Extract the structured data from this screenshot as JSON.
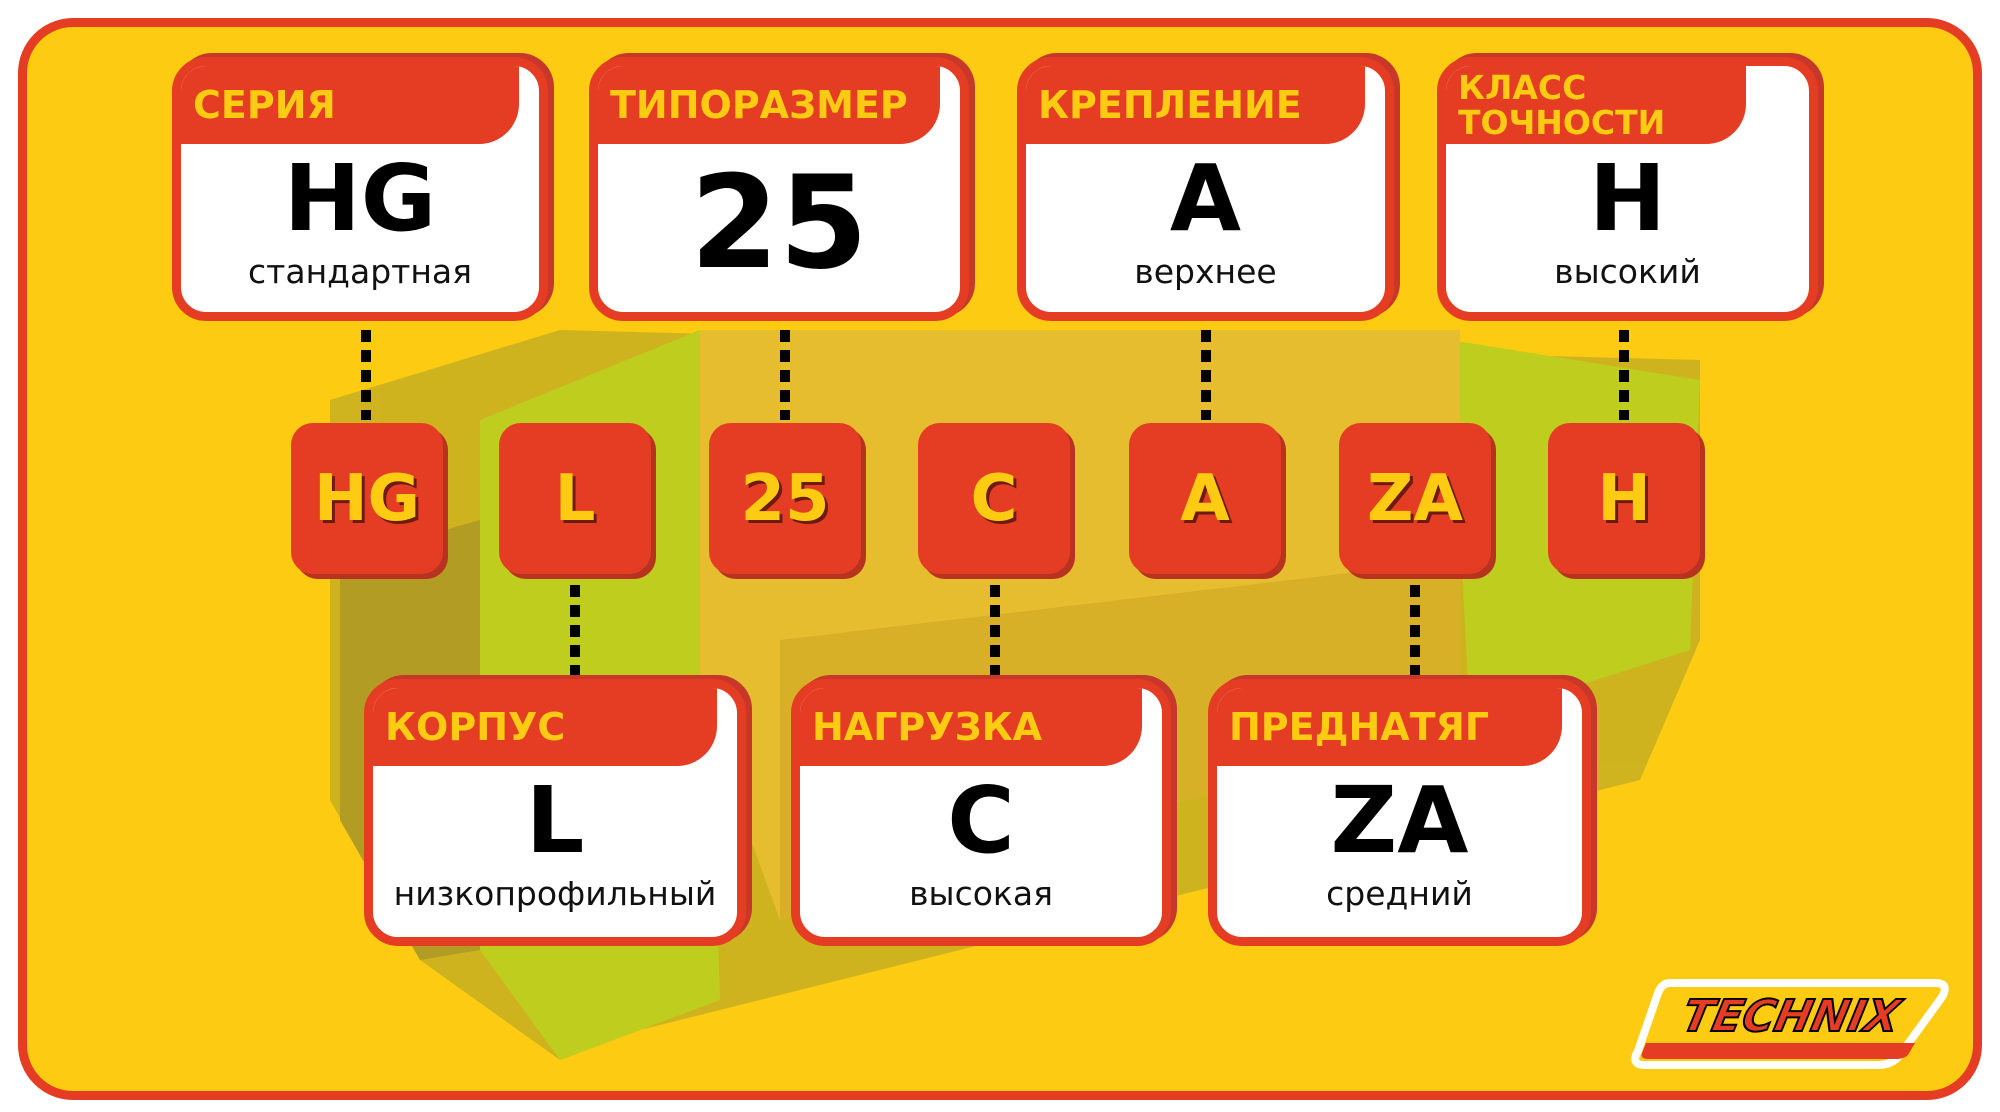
{
  "colors": {
    "background": "#fccb12",
    "accent_red": "#e53d23",
    "label_yellow": "#fccb12",
    "card_white": "#ffffff"
  },
  "top_cards": [
    {
      "header": "СЕРИЯ",
      "code": "HG",
      "desc": "стандартная"
    },
    {
      "header": "ТИПОРАЗМЕР",
      "code": "25",
      "desc": ""
    },
    {
      "header": "КРЕПЛЕНИЕ",
      "code": "A",
      "desc": "верхнее"
    },
    {
      "header": "КЛАСС ТОЧНОСТИ",
      "code": "H",
      "desc": "высокий"
    }
  ],
  "code_chips": [
    "HG",
    "L",
    "25",
    "C",
    "A",
    "ZA",
    "H"
  ],
  "bottom_cards": [
    {
      "header": "КОРПУС",
      "code": "L",
      "desc": "низкопрофильный"
    },
    {
      "header": "НАГРУЗКА",
      "code": "C",
      "desc": "высокая"
    },
    {
      "header": "ПРЕДНАТЯГ",
      "code": "ZA",
      "desc": "средний"
    }
  ],
  "logo": {
    "text": "TECHNIX"
  }
}
